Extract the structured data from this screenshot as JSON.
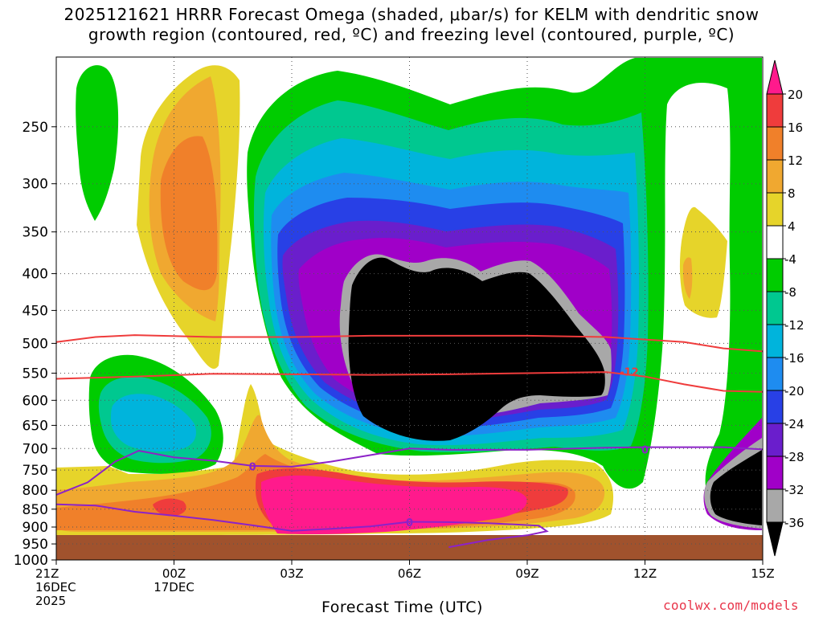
{
  "title_line1": "2025121621 HRRR Forecast Omega (shaded, μbar/s) for KELM with dendritic snow",
  "title_line2": "growth region (contoured, red, ºC) and freezing level (contoured, purple, ºC)",
  "xlabel": "Forecast Time (UTC)",
  "credit": "coolwx.com/models",
  "chart_data": {
    "type": "heatmap",
    "title": "2025121621 HRRR Forecast Omega (shaded, μbar/s) for KELM with dendritic snow growth region (contoured, red, ºC) and freezing level (contoured, purple, ºC)",
    "xlabel": "Forecast Time (UTC)",
    "ylabel": "",
    "x_range_hours": [
      0,
      18
    ],
    "y_range_hPa": [
      1000,
      200
    ],
    "y_scale": "log",
    "x_ticks": [
      {
        "hour": 0,
        "lines": [
          "21Z",
          "16DEC",
          "2025"
        ]
      },
      {
        "hour": 3,
        "lines": [
          "00Z",
          "17DEC"
        ]
      },
      {
        "hour": 6,
        "lines": [
          "03Z"
        ]
      },
      {
        "hour": 9,
        "lines": [
          "06Z"
        ]
      },
      {
        "hour": 12,
        "lines": [
          "09Z"
        ]
      },
      {
        "hour": 15,
        "lines": [
          "12Z"
        ]
      },
      {
        "hour": 18,
        "lines": [
          "15Z"
        ]
      }
    ],
    "y_ticks": [
      250,
      300,
      350,
      400,
      450,
      500,
      550,
      600,
      650,
      700,
      750,
      800,
      850,
      900,
      950,
      1000
    ],
    "grid": true,
    "colorbar": {
      "position": "right",
      "labels": [
        "20",
        "16",
        "12",
        "8",
        "4",
        "-4",
        "-8",
        "-12",
        "-16",
        "-20",
        "-24",
        "-28",
        "-32",
        "-36"
      ],
      "levels": [
        {
          "range": "> 20",
          "color": "#ff1a8c"
        },
        {
          "range": "16 to 20",
          "color": "#ef3c3c"
        },
        {
          "range": "12 to 16",
          "color": "#f0802a"
        },
        {
          "range": "8 to 12",
          "color": "#f0a830"
        },
        {
          "range": "4 to 8",
          "color": "#e6d42a"
        },
        {
          "range": "-4 to 4",
          "color": "#ffffff"
        },
        {
          "range": "-8 to -4",
          "color": "#00cc00"
        },
        {
          "range": "-12 to -8",
          "color": "#00c890"
        },
        {
          "range": "-16 to -12",
          "color": "#00b4dc"
        },
        {
          "range": "-20 to -16",
          "color": "#1e8cf0"
        },
        {
          "range": "-24 to -20",
          "color": "#2840e6"
        },
        {
          "range": "-28 to -24",
          "color": "#6a1ecc"
        },
        {
          "range": "-32 to -28",
          "color": "#a000c8"
        },
        {
          "range": "-36 to -32",
          "color": "#a8a8a8"
        },
        {
          "range": "< -36",
          "color": "#000000"
        }
      ]
    },
    "ground_color": "#a0522d",
    "dgz_contours": {
      "color": "#ef3c3c",
      "label": "-12",
      "lines": [
        {
          "name": "upper",
          "points": [
            [
              0,
              498
            ],
            [
              1,
              490
            ],
            [
              2,
              487
            ],
            [
              4,
              490
            ],
            [
              6,
              490
            ],
            [
              8,
              488
            ],
            [
              10,
              488
            ],
            [
              12,
              488
            ],
            [
              14,
              490
            ],
            [
              16,
              498
            ],
            [
              17,
              508
            ],
            [
              18,
              513
            ]
          ]
        },
        {
          "name": "lower",
          "points": [
            [
              0,
              560
            ],
            [
              2,
              556
            ],
            [
              4,
              551
            ],
            [
              6,
              552
            ],
            [
              8,
              553
            ],
            [
              10,
              552
            ],
            [
              12,
              550
            ],
            [
              14,
              548
            ],
            [
              15,
              556
            ],
            [
              16,
              570
            ],
            [
              17,
              582
            ],
            [
              18,
              584
            ]
          ]
        }
      ]
    },
    "freezing_level_contours": {
      "color": "#8c22c8",
      "label": "0",
      "lines": [
        {
          "name": "upper",
          "points": [
            [
              0,
              812
            ],
            [
              0.8,
              780
            ],
            [
              1.5,
              730
            ],
            [
              2.1,
              705
            ],
            [
              3,
              720
            ],
            [
              4,
              728
            ],
            [
              5,
              740
            ],
            [
              6,
              742
            ],
            [
              7,
              730
            ],
            [
              8,
              715
            ],
            [
              9,
              700
            ],
            [
              10,
              703
            ],
            [
              12,
              703
            ],
            [
              14,
              698
            ],
            [
              15,
              697
            ],
            [
              16,
              697
            ],
            [
              17,
              697
            ],
            [
              18,
              702
            ]
          ]
        },
        {
          "name": "lower",
          "points": [
            [
              0,
              837
            ],
            [
              1,
              840
            ],
            [
              2,
              857
            ],
            [
              3,
              868
            ],
            [
              4,
              880
            ],
            [
              5,
              895
            ],
            [
              6,
              911
            ],
            [
              7,
              905
            ],
            [
              8,
              898
            ],
            [
              9,
              885
            ],
            [
              10,
              886
            ],
            [
              11,
              889
            ],
            [
              12.3,
              896
            ],
            [
              12.5,
              912
            ],
            [
              12,
              924
            ],
            [
              11,
              938
            ],
            [
              10,
              960
            ]
          ]
        }
      ]
    }
  }
}
